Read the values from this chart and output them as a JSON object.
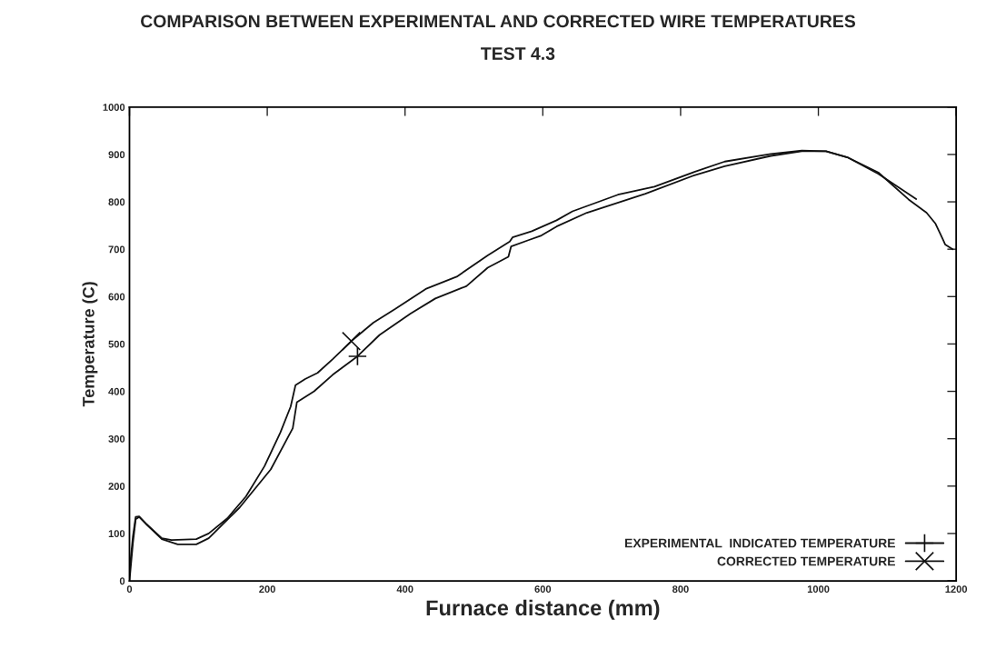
{
  "chart_data": {
    "type": "line",
    "title": "COMPARISON BETWEEN EXPERIMENTAL AND CORRECTED WIRE TEMPERATURES",
    "subtitle": "TEST 4.3",
    "xlabel": "Furnace distance (mm)",
    "ylabel": "Temperature (C)",
    "xlim": [
      0,
      1200
    ],
    "xticks": [
      0,
      200,
      400,
      600,
      800,
      1000,
      1200
    ],
    "ylim": [
      0,
      1000
    ],
    "yticks": [
      0,
      100,
      200,
      300,
      400,
      500,
      600,
      700,
      800,
      900,
      1000
    ],
    "grid": false,
    "legend": "bottom right",
    "line_style": "solid",
    "series": [
      {
        "name": "EXPERIMENTAL  INDICATED TEMPERATURE",
        "color": "#111111",
        "x": [
          0,
          5,
          9,
          14,
          25,
          47,
          70,
          97,
          115,
          160,
          205,
          237,
          243,
          268,
          295,
          331,
          363,
          408,
          444,
          489,
          520,
          550,
          554,
          579,
          598,
          620,
          664,
          749,
          820,
          864,
          931,
          976,
          1011,
          1042,
          1087,
          1131,
          1157,
          1170,
          1180,
          1184,
          1195
        ],
        "values": [
          0,
          80,
          130,
          135,
          119,
          88,
          77,
          77,
          90,
          155,
          235,
          322,
          377,
          400,
          435,
          474,
          519,
          564,
          596,
          622,
          661,
          684,
          706,
          719,
          729,
          748,
          777,
          817,
          856,
          875,
          897,
          907,
          907,
          894,
          862,
          805,
          777,
          754,
          723,
          710,
          700
        ]
      },
      {
        "name": "CORRECTED TEMPERATURE",
        "color": "#111111",
        "x": [
          0,
          5,
          9,
          14,
          25,
          47,
          61,
          97,
          115,
          142,
          169,
          196,
          219,
          234,
          241,
          255,
          273,
          295,
          322,
          354,
          386,
          430,
          475,
          520,
          552,
          556,
          584,
          620,
          643,
          709,
          762,
          820,
          864,
          931,
          976,
          1011,
          1042,
          1087,
          1142
        ],
        "values": [
          20,
          94,
          135,
          136,
          119,
          90,
          86,
          88,
          100,
          132,
          178,
          242,
          313,
          368,
          413,
          426,
          439,
          468,
          506,
          545,
          574,
          616,
          642,
          687,
          716,
          725,
          738,
          761,
          780,
          815,
          832,
          863,
          885,
          901,
          908,
          907,
          894,
          859,
          806
        ]
      }
    ]
  }
}
